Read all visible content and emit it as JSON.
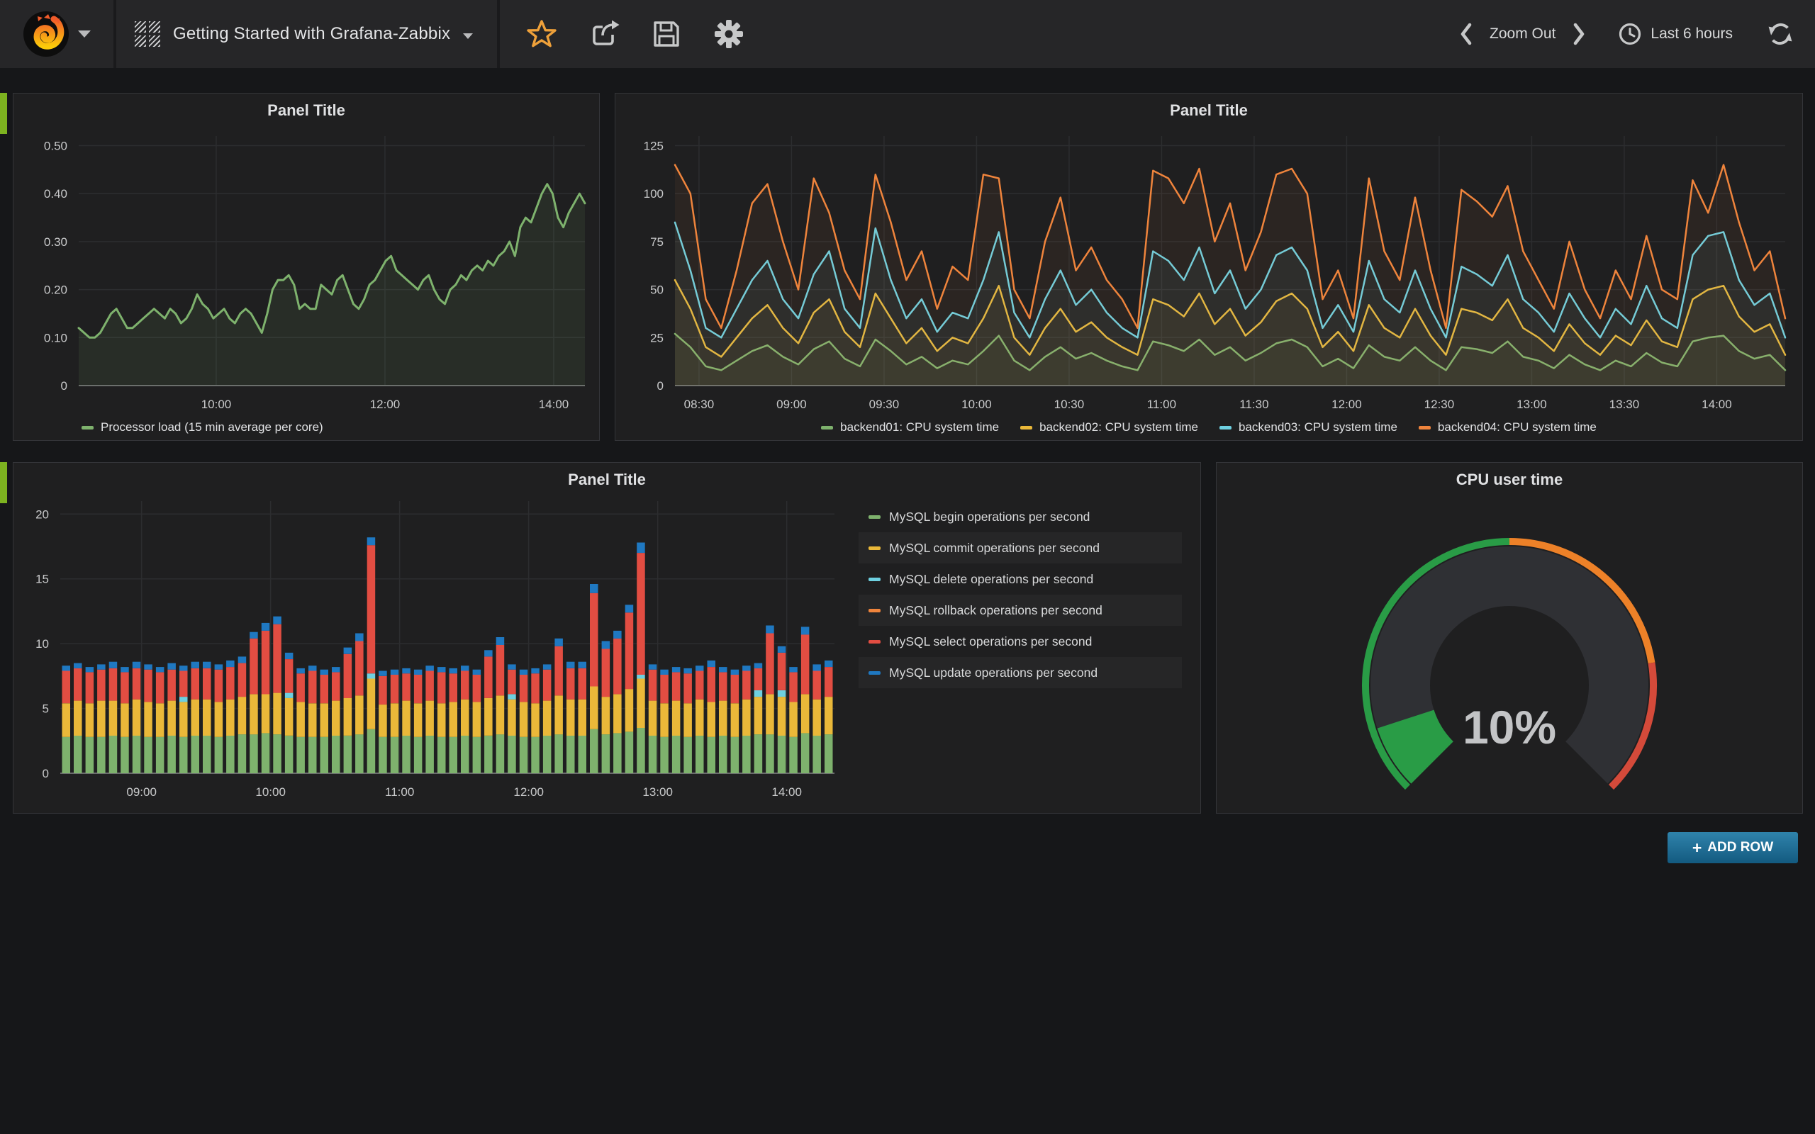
{
  "navbar": {
    "title": "Getting Started with Grafana-Zabbix",
    "zoom_out": "Zoom Out",
    "time_range": "Last 6 hours"
  },
  "buttons": {
    "add_row_plus": "+",
    "add_row": "ADD ROW"
  },
  "palette": {
    "green": "#7EB26D",
    "yellow": "#EAB839",
    "cyan": "#6ED0E0",
    "orange": "#EF843C",
    "red": "#E24D42",
    "blue": "#1F78C1",
    "gauge_green": "#299C46",
    "gauge_orange": "#ED8128",
    "gauge_red": "#D44A3A",
    "row_tab": "#7DB320",
    "add_row_blue": "#2F83AB"
  },
  "chart_data": [
    {
      "id": "processor-load",
      "type": "line",
      "title": "Panel Title",
      "x_range": [
        8.37,
        14.37
      ],
      "x_ticks": [
        {
          "at": 10,
          "label": "10:00"
        },
        {
          "at": 12,
          "label": "12:00"
        },
        {
          "at": 14,
          "label": "14:00"
        }
      ],
      "y_ticks": [
        {
          "at": 0,
          "label": "0"
        },
        {
          "at": 0.1,
          "label": "0.10"
        },
        {
          "at": 0.2,
          "label": "0.20"
        },
        {
          "at": 0.3,
          "label": "0.30"
        },
        {
          "at": 0.4,
          "label": "0.40"
        },
        {
          "at": 0.5,
          "label": "0.50"
        }
      ],
      "y_max": 0.52,
      "series": [
        {
          "name": "Processor load (15 min average per core)",
          "color": "#7EB26D",
          "values": [
            0.12,
            0.11,
            0.1,
            0.1,
            0.11,
            0.13,
            0.15,
            0.16,
            0.14,
            0.12,
            0.12,
            0.13,
            0.14,
            0.15,
            0.16,
            0.15,
            0.14,
            0.16,
            0.15,
            0.13,
            0.14,
            0.16,
            0.19,
            0.17,
            0.16,
            0.14,
            0.15,
            0.16,
            0.14,
            0.13,
            0.15,
            0.16,
            0.15,
            0.13,
            0.11,
            0.15,
            0.2,
            0.22,
            0.22,
            0.23,
            0.21,
            0.16,
            0.17,
            0.16,
            0.16,
            0.21,
            0.2,
            0.19,
            0.22,
            0.23,
            0.2,
            0.17,
            0.16,
            0.18,
            0.21,
            0.22,
            0.24,
            0.26,
            0.27,
            0.24,
            0.23,
            0.22,
            0.21,
            0.2,
            0.22,
            0.23,
            0.2,
            0.18,
            0.17,
            0.2,
            0.21,
            0.23,
            0.22,
            0.24,
            0.25,
            0.24,
            0.26,
            0.25,
            0.27,
            0.28,
            0.3,
            0.27,
            0.33,
            0.35,
            0.34,
            0.37,
            0.4,
            0.42,
            0.4,
            0.35,
            0.33,
            0.36,
            0.38,
            0.4,
            0.38
          ]
        }
      ]
    },
    {
      "id": "cpu-system-time",
      "type": "line",
      "title": "Panel Title",
      "x_range": [
        8.37,
        14.37
      ],
      "x_ticks": [
        {
          "at": 8.5,
          "label": "08:30"
        },
        {
          "at": 9,
          "label": "09:00"
        },
        {
          "at": 9.5,
          "label": "09:30"
        },
        {
          "at": 10,
          "label": "10:00"
        },
        {
          "at": 10.5,
          "label": "10:30"
        },
        {
          "at": 11,
          "label": "11:00"
        },
        {
          "at": 11.5,
          "label": "11:30"
        },
        {
          "at": 12,
          "label": "12:00"
        },
        {
          "at": 12.5,
          "label": "12:30"
        },
        {
          "at": 13,
          "label": "13:00"
        },
        {
          "at": 13.5,
          "label": "13:30"
        },
        {
          "at": 14,
          "label": "14:00"
        }
      ],
      "y_ticks": [
        {
          "at": 0,
          "label": "0"
        },
        {
          "at": 25,
          "label": "25"
        },
        {
          "at": 50,
          "label": "50"
        },
        {
          "at": 75,
          "label": "75"
        },
        {
          "at": 100,
          "label": "100"
        },
        {
          "at": 125,
          "label": "125"
        }
      ],
      "y_max": 130,
      "series": [
        {
          "name": "backend01: CPU system time",
          "color": "#7EB26D",
          "values": [
            27,
            20,
            10,
            8,
            13,
            18,
            21,
            15,
            11,
            19,
            23,
            14,
            10,
            24,
            18,
            11,
            15,
            9,
            13,
            11,
            18,
            26,
            13,
            8,
            15,
            20,
            14,
            17,
            13,
            10,
            8,
            23,
            21,
            18,
            24,
            16,
            20,
            13,
            17,
            22,
            24,
            20,
            10,
            14,
            9,
            21,
            15,
            13,
            20,
            13,
            8,
            20,
            19,
            17,
            23,
            15,
            13,
            9,
            16,
            11,
            8,
            13,
            10,
            17,
            12,
            10,
            23,
            25,
            26,
            18,
            14,
            16,
            8
          ]
        },
        {
          "name": "backend02: CPU system time",
          "color": "#EAB839",
          "values": [
            55,
            40,
            20,
            15,
            25,
            35,
            42,
            30,
            22,
            38,
            45,
            28,
            20,
            48,
            35,
            22,
            30,
            18,
            25,
            22,
            35,
            52,
            25,
            16,
            30,
            40,
            28,
            33,
            25,
            20,
            16,
            45,
            42,
            36,
            48,
            32,
            40,
            26,
            33,
            44,
            48,
            40,
            20,
            28,
            18,
            42,
            30,
            25,
            40,
            26,
            16,
            40,
            38,
            34,
            45,
            30,
            25,
            18,
            32,
            22,
            16,
            26,
            21,
            34,
            23,
            20,
            45,
            50,
            52,
            36,
            28,
            32,
            16
          ]
        },
        {
          "name": "backend03: CPU system time",
          "color": "#6ED0E0",
          "values": [
            85,
            60,
            30,
            25,
            40,
            55,
            65,
            45,
            35,
            58,
            70,
            40,
            30,
            82,
            55,
            35,
            45,
            28,
            38,
            35,
            55,
            80,
            38,
            25,
            45,
            60,
            42,
            50,
            38,
            30,
            25,
            70,
            65,
            55,
            72,
            48,
            60,
            40,
            50,
            68,
            72,
            60,
            30,
            42,
            28,
            65,
            45,
            38,
            60,
            40,
            25,
            62,
            58,
            52,
            68,
            45,
            38,
            28,
            48,
            35,
            25,
            40,
            32,
            52,
            35,
            30,
            68,
            78,
            80,
            55,
            42,
            48,
            25
          ]
        },
        {
          "name": "backend04: CPU system time",
          "color": "#EF843C",
          "values": [
            115,
            100,
            45,
            30,
            60,
            95,
            105,
            75,
            50,
            108,
            90,
            60,
            45,
            110,
            85,
            55,
            70,
            40,
            62,
            55,
            110,
            108,
            50,
            35,
            75,
            98,
            60,
            72,
            55,
            45,
            30,
            112,
            108,
            95,
            113,
            75,
            95,
            60,
            80,
            110,
            113,
            100,
            45,
            60,
            35,
            108,
            70,
            55,
            98,
            60,
            30,
            102,
            96,
            88,
            104,
            70,
            55,
            40,
            75,
            50,
            35,
            60,
            45,
            78,
            50,
            45,
            107,
            90,
            115,
            85,
            60,
            70,
            35
          ]
        }
      ]
    },
    {
      "id": "mysql-operations",
      "type": "stacked-bar",
      "title": "Panel Title",
      "x_range": [
        8.37,
        14.37
      ],
      "x_ticks": [
        {
          "at": 9,
          "label": "09:00"
        },
        {
          "at": 10,
          "label": "10:00"
        },
        {
          "at": 11,
          "label": "11:00"
        },
        {
          "at": 12,
          "label": "12:00"
        },
        {
          "at": 13,
          "label": "13:00"
        },
        {
          "at": 14,
          "label": "14:00"
        }
      ],
      "y_ticks": [
        {
          "at": 0,
          "label": "0"
        },
        {
          "at": 5,
          "label": "5"
        },
        {
          "at": 10,
          "label": "10"
        },
        {
          "at": 15,
          "label": "15"
        },
        {
          "at": 20,
          "label": "20"
        }
      ],
      "y_max": 21,
      "series": [
        {
          "name": "MySQL begin operations per second",
          "color": "#7EB26D",
          "values": [
            2.8,
            2.9,
            2.8,
            2.8,
            2.9,
            2.8,
            2.9,
            2.8,
            2.8,
            2.9,
            2.8,
            2.9,
            2.9,
            2.8,
            2.9,
            3.0,
            3.0,
            3.1,
            3.0,
            2.9,
            2.8,
            2.8,
            2.8,
            2.9,
            2.9,
            3.0,
            3.4,
            2.8,
            2.8,
            2.9,
            2.8,
            2.9,
            2.8,
            2.8,
            2.9,
            2.8,
            2.9,
            3.0,
            2.9,
            2.8,
            2.8,
            2.9,
            3.0,
            2.9,
            2.9,
            3.4,
            3.0,
            3.1,
            3.2,
            3.5,
            2.9,
            2.8,
            2.9,
            2.8,
            2.9,
            2.8,
            2.9,
            2.8,
            2.9,
            3.0,
            3.0,
            2.9,
            2.8,
            3.1,
            2.9,
            3.0
          ]
        },
        {
          "name": "MySQL commit operations per second",
          "color": "#EAB839",
          "values": [
            2.6,
            2.7,
            2.6,
            2.8,
            2.7,
            2.6,
            2.8,
            2.7,
            2.6,
            2.7,
            2.7,
            2.8,
            2.8,
            2.7,
            2.8,
            2.9,
            3.1,
            3.0,
            3.2,
            2.9,
            2.7,
            2.6,
            2.6,
            2.7,
            2.9,
            3.0,
            3.9,
            2.5,
            2.6,
            2.7,
            2.6,
            2.7,
            2.6,
            2.7,
            2.8,
            2.7,
            2.9,
            3.0,
            2.8,
            2.7,
            2.6,
            2.7,
            3.0,
            2.8,
            2.8,
            3.3,
            2.9,
            3.0,
            3.3,
            3.8,
            2.7,
            2.6,
            2.7,
            2.6,
            2.8,
            2.7,
            2.7,
            2.6,
            2.8,
            2.9,
            3.1,
            3.0,
            2.7,
            3.0,
            2.8,
            2.9
          ]
        },
        {
          "name": "MySQL delete operations per second",
          "color": "#6ED0E0",
          "values": [
            0,
            0,
            0,
            0,
            0,
            0,
            0,
            0,
            0,
            0,
            0.4,
            0,
            0,
            0,
            0,
            0,
            0,
            0,
            0,
            0.4,
            0,
            0,
            0,
            0,
            0,
            0,
            0.4,
            0,
            0,
            0,
            0,
            0,
            0,
            0,
            0,
            0,
            0,
            0,
            0.4,
            0,
            0,
            0,
            0,
            0,
            0,
            0,
            0,
            0,
            0,
            0.3,
            0,
            0,
            0,
            0,
            0,
            0,
            0,
            0,
            0,
            0.5,
            0,
            0.5,
            0,
            0,
            0,
            0
          ]
        },
        {
          "name": "MySQL rollback operations per second",
          "color": "#EF843C",
          "values": [
            0,
            0,
            0,
            0,
            0,
            0,
            0,
            0,
            0,
            0,
            0,
            0,
            0,
            0,
            0,
            0,
            0,
            0,
            0,
            0,
            0,
            0,
            0,
            0,
            0,
            0,
            0,
            0,
            0,
            0,
            0,
            0,
            0,
            0,
            0,
            0,
            0,
            0,
            0,
            0,
            0,
            0,
            0,
            0,
            0,
            0,
            0,
            0,
            0,
            0,
            0,
            0,
            0,
            0,
            0,
            0,
            0,
            0,
            0,
            0,
            0,
            0,
            0,
            0,
            0,
            0
          ]
        },
        {
          "name": "MySQL select operations per second",
          "color": "#E24D42",
          "values": [
            2.5,
            2.5,
            2.4,
            2.4,
            2.5,
            2.4,
            2.4,
            2.5,
            2.4,
            2.4,
            2.0,
            2.4,
            2.4,
            2.5,
            2.5,
            2.6,
            4.3,
            4.9,
            5.3,
            2.6,
            2.2,
            2.5,
            2.2,
            2.2,
            3.4,
            4.2,
            9.9,
            2.2,
            2.2,
            2.1,
            2.2,
            2.3,
            2.4,
            2.2,
            2.2,
            2.1,
            3.2,
            3.9,
            1.9,
            2.1,
            2.3,
            2.4,
            3.8,
            2.4,
            2.4,
            7.2,
            3.7,
            4.3,
            5.9,
            9.4,
            2.4,
            2.2,
            2.2,
            2.3,
            2.2,
            2.7,
            2.2,
            2.2,
            2.2,
            1.7,
            4.7,
            2.9,
            2.3,
            4.6,
            2.2,
            2.3
          ]
        },
        {
          "name": "MySQL update operations per second",
          "color": "#1F78C1",
          "values": [
            0.4,
            0.4,
            0.4,
            0.4,
            0.5,
            0.4,
            0.5,
            0.4,
            0.4,
            0.5,
            0.4,
            0.5,
            0.5,
            0.4,
            0.5,
            0.5,
            0.5,
            0.6,
            0.6,
            0.5,
            0.4,
            0.4,
            0.4,
            0.4,
            0.5,
            0.6,
            0.6,
            0.4,
            0.4,
            0.4,
            0.4,
            0.4,
            0.4,
            0.4,
            0.4,
            0.4,
            0.5,
            0.6,
            0.4,
            0.4,
            0.4,
            0.4,
            0.6,
            0.5,
            0.5,
            0.7,
            0.6,
            0.6,
            0.6,
            0.8,
            0.4,
            0.4,
            0.4,
            0.4,
            0.4,
            0.5,
            0.4,
            0.4,
            0.4,
            0.4,
            0.6,
            0.5,
            0.4,
            0.6,
            0.5,
            0.5
          ]
        }
      ]
    },
    {
      "id": "cpu-user-time",
      "type": "gauge",
      "title": "CPU user time",
      "value": 10,
      "display": "10%",
      "min": 0,
      "max": 100,
      "thresholds": [
        {
          "to": 50,
          "color": "#299C46"
        },
        {
          "to": 80,
          "color": "#ED8128"
        },
        {
          "to": 100,
          "color": "#D44A3A"
        }
      ]
    }
  ]
}
